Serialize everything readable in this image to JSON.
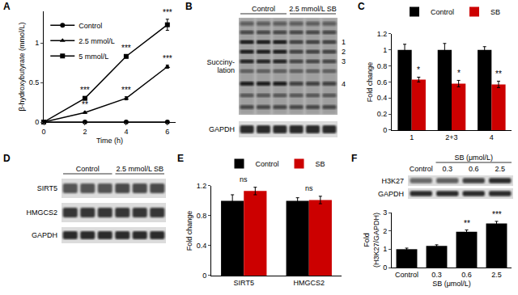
{
  "chart_data": [
    {
      "panel": "A",
      "type": "line",
      "x": [
        0,
        2,
        4,
        6
      ],
      "x_label": "Time (h)",
      "y_label": "β-hydroxybutyrate (mmol/L)",
      "xlim": [
        0,
        6.4
      ],
      "xticks": [
        0,
        2,
        4,
        6
      ],
      "ylim": [
        0,
        1.4
      ],
      "yticks": [
        0,
        0.5,
        1
      ],
      "legend": "top left",
      "grid": false,
      "series": [
        {
          "name": "Control",
          "color": "#000000",
          "marker": "circle",
          "values": [
            0,
            0,
            0,
            0
          ],
          "errors": [
            0,
            0,
            0,
            0
          ],
          "significance": [
            null,
            null,
            null,
            null
          ]
        },
        {
          "name": "2.5 mmol/L",
          "color": "#000000",
          "marker": "triangle",
          "values": [
            0,
            0.12,
            0.3,
            0.7
          ],
          "errors": [
            0,
            0.01,
            0.02,
            0.02
          ],
          "significance": [
            null,
            "**",
            "***",
            "***"
          ]
        },
        {
          "name": "5 mmol/L",
          "color": "#000000",
          "marker": "square",
          "values": [
            0,
            0.3,
            0.83,
            1.23
          ],
          "errors": [
            0,
            0.02,
            0.02,
            0.07
          ],
          "significance": [
            null,
            "***",
            "***",
            "***"
          ]
        }
      ]
    },
    {
      "panel": "C",
      "type": "bar",
      "categories": [
        "1",
        "2+3",
        "4"
      ],
      "y_label": "Fold change",
      "ylim": [
        0,
        1.2
      ],
      "yticks": [
        0,
        0.2,
        0.4,
        0.6,
        0.8,
        1,
        1.2
      ],
      "legend": "top",
      "grid": false,
      "series": [
        {
          "name": "Control",
          "color": "#000000",
          "values": [
            1,
            1,
            1
          ],
          "errors": [
            0.07,
            0.08,
            0.04
          ],
          "significance": [
            null,
            null,
            null
          ]
        },
        {
          "name": "SB",
          "color": "#cc0000",
          "values": [
            0.63,
            0.58,
            0.57
          ],
          "errors": [
            0.03,
            0.04,
            0.04
          ],
          "significance": [
            "*",
            "*",
            "**"
          ]
        }
      ]
    },
    {
      "panel": "E",
      "type": "bar",
      "categories": [
        "SIRT5",
        "HMGCS2"
      ],
      "y_label": "Fold change",
      "ylim": [
        0,
        1.2
      ],
      "yticks": [
        0,
        0.4,
        0.8,
        1.2
      ],
      "legend": "top",
      "grid": false,
      "series": [
        {
          "name": "Control",
          "color": "#000000",
          "values": [
            1,
            1
          ],
          "errors": [
            0.08,
            0.04
          ],
          "significance": [
            null,
            null
          ]
        },
        {
          "name": "SB",
          "color": "#cc0000",
          "values": [
            1.13,
            1.01
          ],
          "errors": [
            0.05,
            0.05
          ],
          "significance": [
            null,
            null
          ]
        }
      ],
      "annotations": [
        {
          "category": "SIRT5",
          "text": "ns"
        },
        {
          "category": "HMGCS2",
          "text": "ns"
        }
      ]
    },
    {
      "panel": "F",
      "type": "bar",
      "categories": [
        "Control",
        "0.3",
        "0.6",
        "2.5"
      ],
      "x_label": "SB (μmol/L)",
      "y_label": "Fold (H3K27/GAPDH)",
      "ylim": [
        0,
        3
      ],
      "yticks": [
        0,
        1,
        2,
        3
      ],
      "grid": false,
      "color": "#000000",
      "values": [
        1,
        1.18,
        1.95,
        2.4
      ],
      "errors": [
        0.06,
        0.06,
        0.1,
        0.12
      ],
      "significance": [
        null,
        null,
        "**",
        "***"
      ]
    }
  ],
  "blots": [
    {
      "panel": "B",
      "groups": [
        {
          "label": "Control",
          "lanes": 3
        },
        {
          "label": "2.5 mmol/L SB",
          "lanes": 3
        }
      ],
      "rows": [
        {
          "label": [
            "Succiny-",
            "lation"
          ],
          "bands": [
            "1",
            "2",
            "3",
            "4"
          ]
        },
        {
          "label": [
            "GAPDH"
          ]
        }
      ]
    },
    {
      "panel": "D",
      "groups": [
        {
          "label": "Control",
          "lanes": 3
        },
        {
          "label": "2.5 mmol/L SB",
          "lanes": 3
        }
      ],
      "rows": [
        {
          "label": [
            "SIRT5"
          ]
        },
        {
          "label": [
            "HMGCS2"
          ]
        },
        {
          "label": [
            "GAPDH"
          ]
        }
      ]
    },
    {
      "header": "SB (μmol/L)",
      "lanes": [
        "Control",
        "0.3",
        "0.6",
        "2.5"
      ],
      "rows": [
        {
          "label": [
            "H3K27"
          ]
        },
        {
          "label": [
            "GAPDH"
          ]
        }
      ]
    }
  ]
}
